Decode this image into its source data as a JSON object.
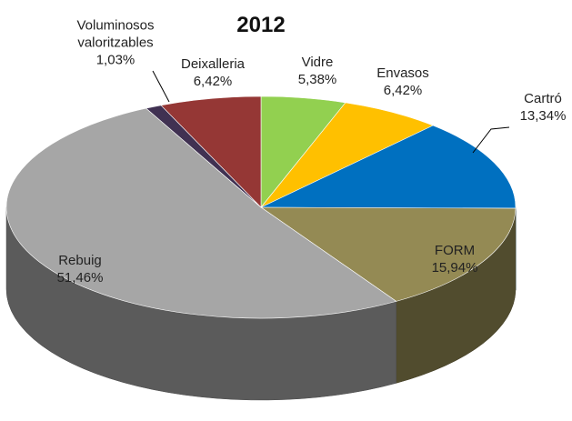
{
  "chart_data": {
    "type": "pie",
    "title": "2012",
    "categories": [
      "Vidre",
      "Envasos",
      "Cartró",
      "FORM",
      "Rebuig",
      "Voluminosos valoritzables",
      "Deixalleria"
    ],
    "values": [
      5.38,
      6.42,
      13.34,
      15.94,
      51.46,
      1.03,
      6.42
    ],
    "value_labels": [
      "5,38%",
      "6,42%",
      "13,34%",
      "15,94%",
      "51,46%",
      "1,03%",
      "6,42%"
    ],
    "colors": [
      "#92d050",
      "#ffc000",
      "#0070c0",
      "#948a54",
      "#a6a6a6",
      "#403152",
      "#953735"
    ]
  }
}
